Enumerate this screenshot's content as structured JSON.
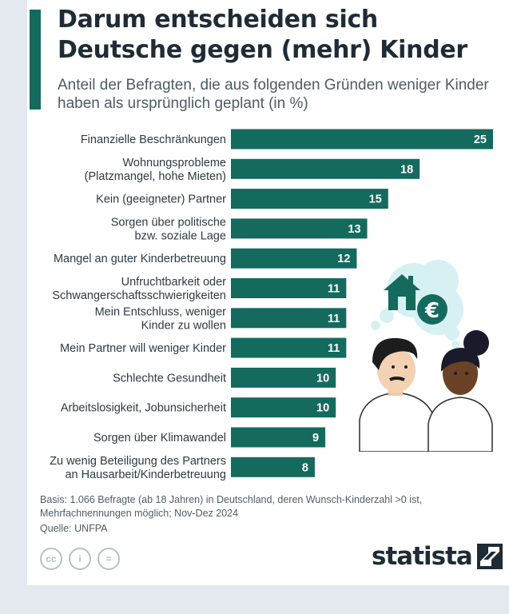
{
  "header": {
    "title": "Darum entscheiden sich Deutsche gegen (mehr) Kinder",
    "subtitle": "Anteil der Befragten, die aus folgenden Gründen weniger Kinder haben als ursprünglich geplant (in %)"
  },
  "chart_data": {
    "type": "bar",
    "orientation": "horizontal",
    "categories": [
      [
        "Finanzielle Beschränkungen"
      ],
      [
        "Wohnungsprobleme",
        "(Platzmangel, hohe Mieten)"
      ],
      [
        "Kein (geeigneter) Partner"
      ],
      [
        "Sorgen über politische",
        "bzw. soziale Lage"
      ],
      [
        "Mangel an guter Kinderbetreuung"
      ],
      [
        "Unfruchtbarkeit oder",
        "Schwangerschaftsschwierigkeiten"
      ],
      [
        "Mein Entschluss, weniger",
        "Kinder zu wollen"
      ],
      [
        "Mein Partner will weniger Kinder"
      ],
      [
        "Schlechte Gesundheit"
      ],
      [
        "Arbeitslosigkeit, Jobunsicherheit"
      ],
      [
        "Sorgen über Klimawandel"
      ],
      [
        "Zu wenig Beteiligung des Partners",
        "an Hausarbeit/Kinderbetreuung"
      ]
    ],
    "values": [
      25,
      18,
      15,
      13,
      12,
      11,
      11,
      11,
      10,
      10,
      9,
      8
    ],
    "xlim": [
      0,
      25
    ],
    "grid": false,
    "bar_color": "#156a5e"
  },
  "footer": {
    "basis": "Basis: 1.066 Befragte (ab 18 Jahren) in Deutschland, deren Wunsch-Kinderzahl >0 ist, Mehrfachnennungen möglich; Nov-Dez 2024",
    "source": "Quelle: UNFPA"
  },
  "license_icons": [
    "cc-icon",
    "person-icon",
    "equals-icon"
  ],
  "license_glyphs": [
    "cc",
    "i",
    "="
  ],
  "brand": {
    "name": "statista"
  },
  "colors": {
    "accent": "#156a5e",
    "title": "#1f2c36",
    "bubble": "#d7f1f3"
  }
}
